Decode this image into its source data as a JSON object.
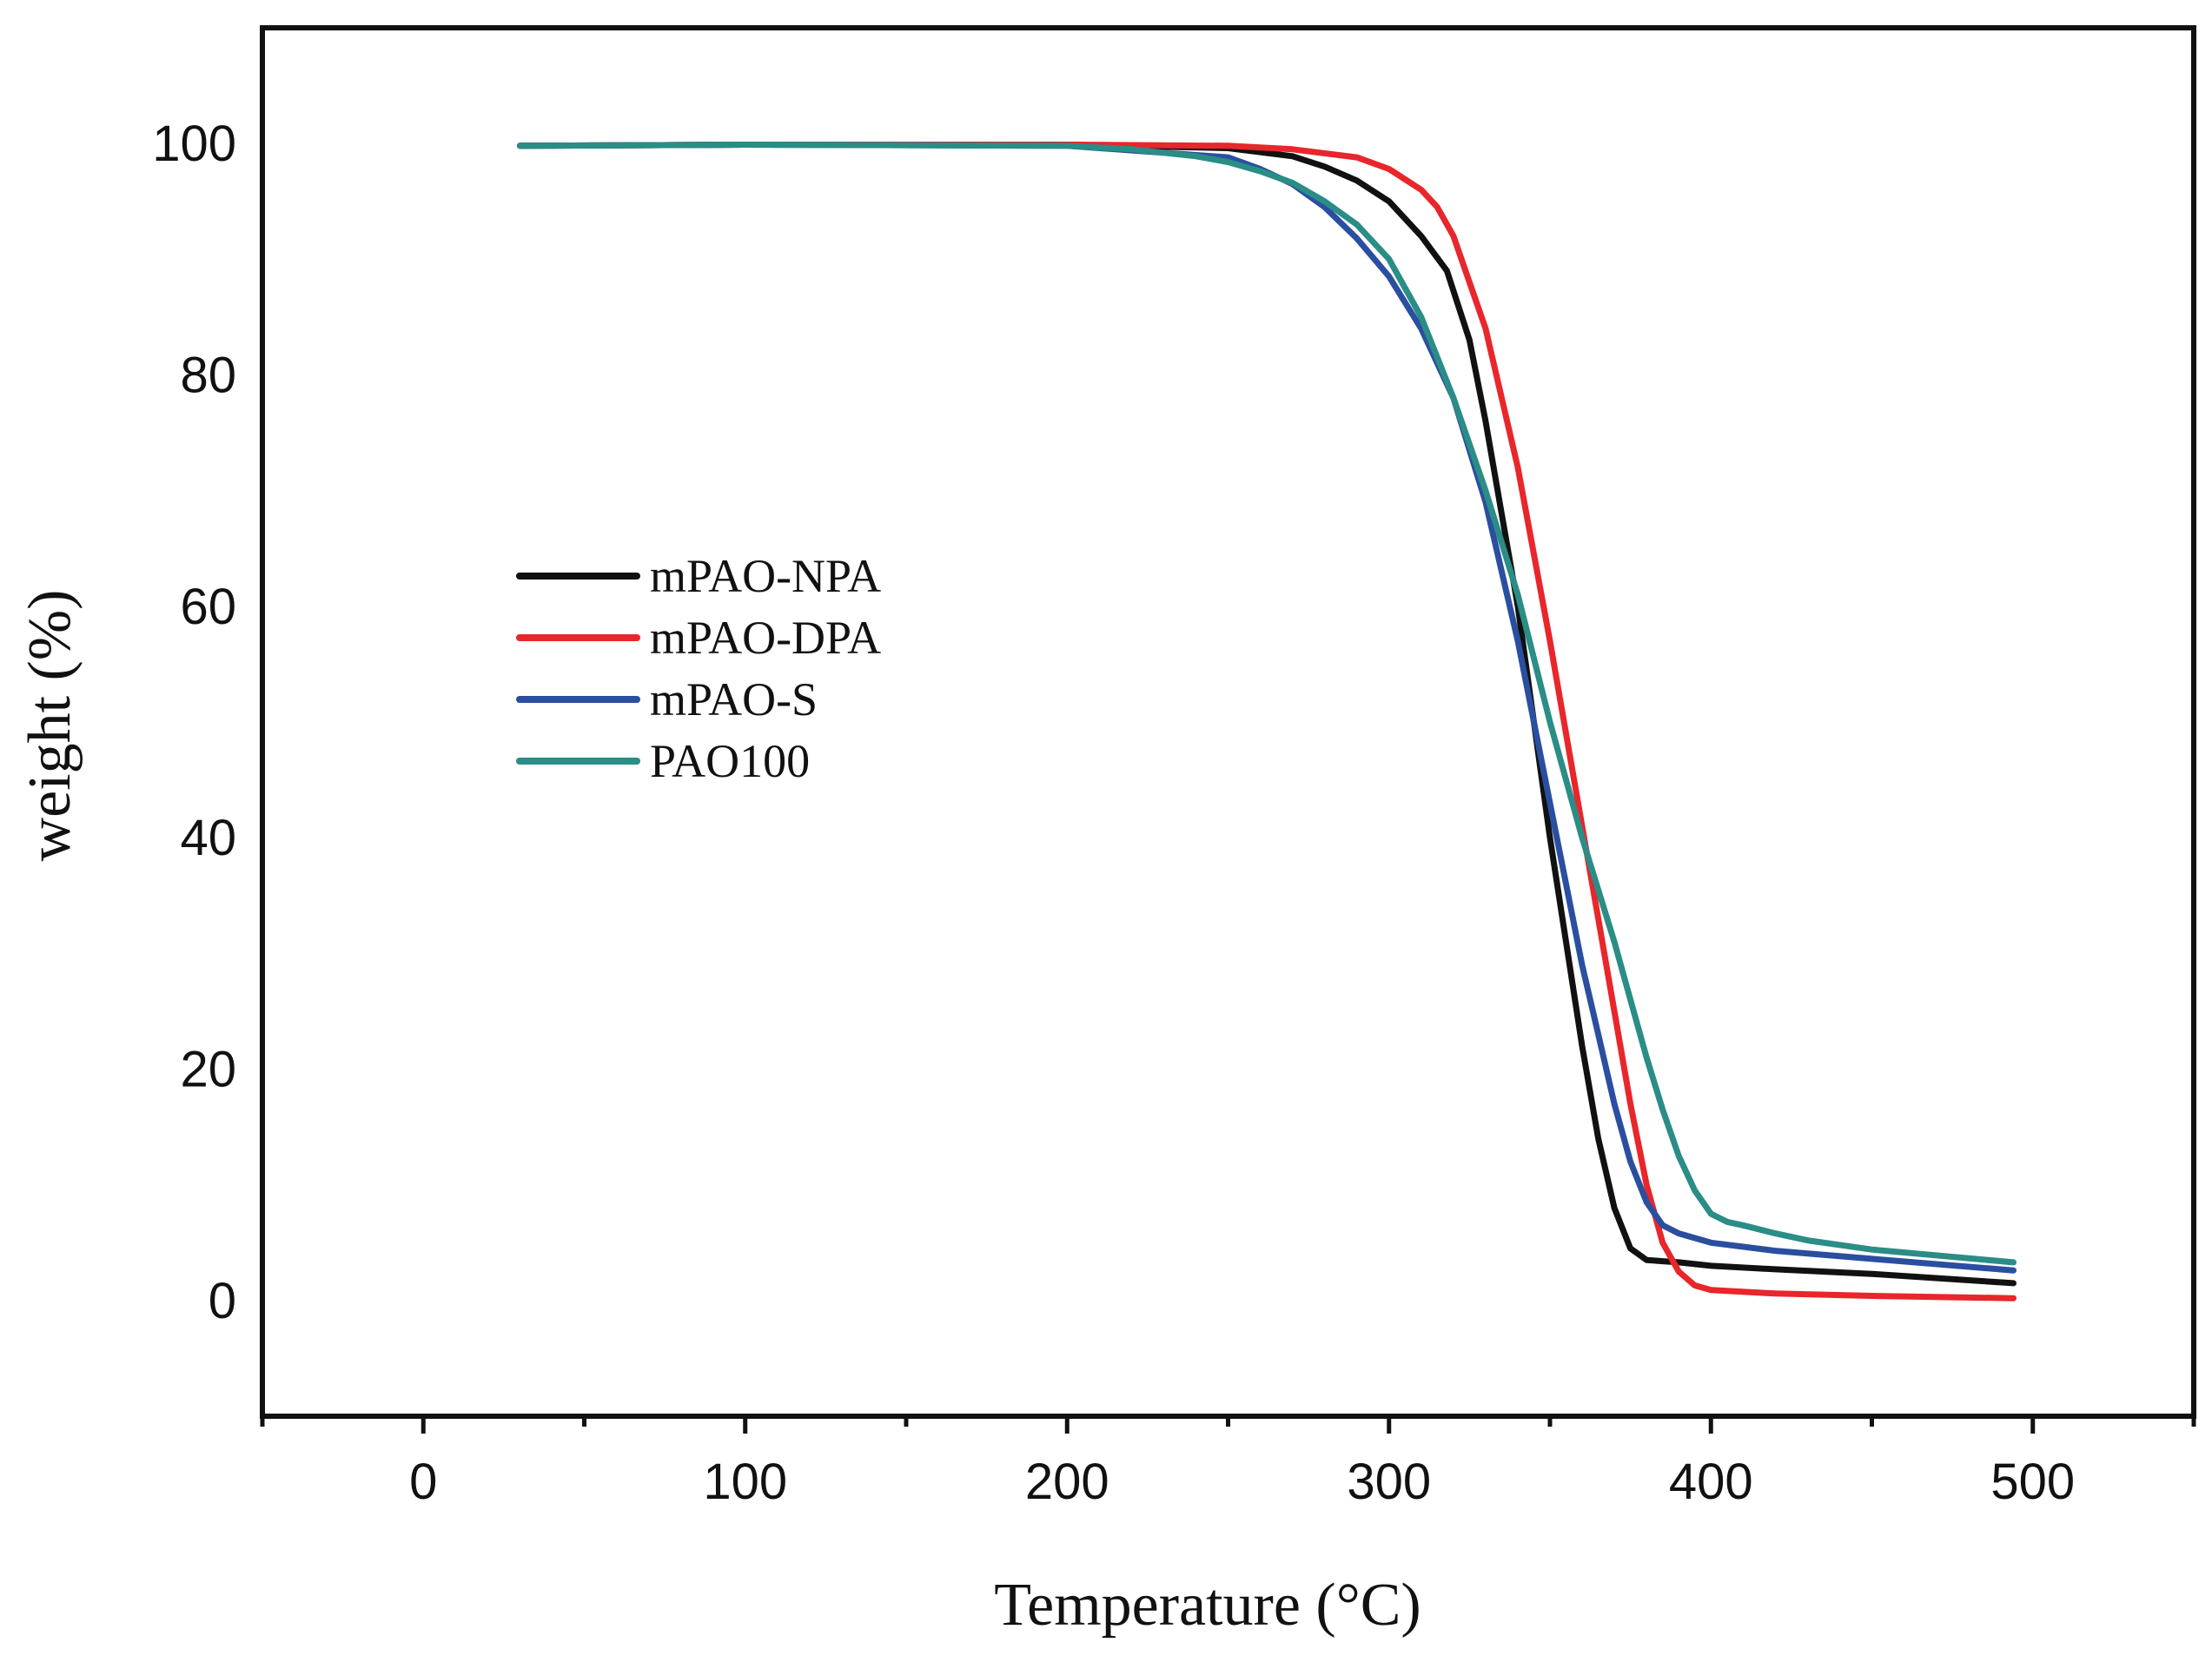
{
  "chart_data": {
    "type": "line",
    "title": "",
    "xlabel": "Temperature (°C)",
    "ylabel": "weight (%)",
    "xlim": [
      -50,
      550
    ],
    "ylim": [
      -10,
      110
    ],
    "xticks": [
      0,
      100,
      200,
      300,
      400,
      500
    ],
    "xticks_minor": [
      -50,
      50,
      150,
      250,
      350,
      450,
      550
    ],
    "yticks": [
      0,
      20,
      40,
      60,
      80,
      100
    ],
    "grid": false,
    "legend_position": "center-left",
    "series": [
      {
        "name": "mPAO-NPA",
        "color": "#111111",
        "x": [
          30,
          100,
          200,
          250,
          270,
          280,
          290,
          300,
          310,
          318,
          325,
          330,
          335,
          340,
          345,
          350,
          355,
          360,
          365,
          370,
          375,
          380,
          385,
          390,
          400,
          420,
          450,
          494
        ],
        "y": [
          99.8,
          99.9,
          99.9,
          99.6,
          98.9,
          98.0,
          96.8,
          95.0,
          92.0,
          89.0,
          83.0,
          76.0,
          68.0,
          60.0,
          50.0,
          40.0,
          31.0,
          22.0,
          14.0,
          8.0,
          4.5,
          3.5,
          3.4,
          3.3,
          3.0,
          2.7,
          2.3,
          1.5
        ]
      },
      {
        "name": "mPAO-DPA",
        "color": "#e8262b",
        "x": [
          30,
          100,
          200,
          250,
          270,
          290,
          300,
          310,
          315,
          320,
          330,
          340,
          350,
          355,
          360,
          365,
          370,
          375,
          380,
          385,
          390,
          395,
          400,
          420,
          450,
          494
        ],
        "y": [
          99.8,
          99.9,
          99.9,
          99.8,
          99.5,
          98.8,
          97.8,
          96.0,
          94.5,
          92.0,
          84.0,
          72.0,
          57.0,
          49.0,
          41.0,
          33.0,
          25.0,
          17.0,
          10.0,
          5.0,
          2.5,
          1.3,
          0.9,
          0.6,
          0.4,
          0.2
        ]
      },
      {
        "name": "mPAO-S",
        "color": "#2a4fa0",
        "x": [
          30,
          100,
          200,
          250,
          260,
          270,
          280,
          290,
          300,
          310,
          320,
          330,
          340,
          345,
          350,
          355,
          360,
          365,
          370,
          375,
          380,
          385,
          390,
          400,
          420,
          450,
          494
        ],
        "y": [
          99.8,
          99.9,
          99.8,
          98.8,
          97.8,
          96.5,
          94.5,
          91.8,
          88.5,
          84.0,
          78.0,
          69.0,
          57.0,
          50.0,
          43.0,
          36.0,
          29.0,
          23.0,
          17.0,
          12.0,
          8.5,
          6.5,
          5.8,
          5.0,
          4.3,
          3.6,
          2.6
        ]
      },
      {
        "name": "PAO100",
        "color": "#2a8d86",
        "x": [
          30,
          100,
          200,
          220,
          240,
          250,
          260,
          270,
          280,
          290,
          300,
          310,
          320,
          330,
          340,
          350,
          360,
          370,
          375,
          380,
          385,
          390,
          395,
          400,
          405,
          410,
          420,
          430,
          450,
          494
        ],
        "y": [
          99.8,
          99.9,
          99.8,
          99.5,
          98.9,
          98.4,
          97.6,
          96.6,
          95.0,
          93.0,
          90.0,
          85.0,
          78.0,
          70.0,
          61.0,
          50.0,
          40.0,
          31.0,
          26.0,
          21.0,
          16.5,
          12.5,
          9.5,
          7.5,
          6.8,
          6.5,
          5.8,
          5.2,
          4.4,
          3.3
        ]
      }
    ]
  }
}
